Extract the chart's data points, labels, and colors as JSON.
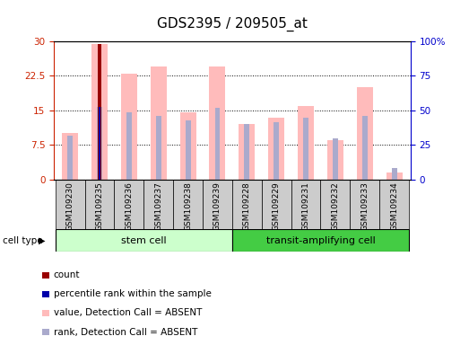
{
  "title": "GDS2395 / 209505_at",
  "samples": [
    "GSM109230",
    "GSM109235",
    "GSM109236",
    "GSM109237",
    "GSM109238",
    "GSM109239",
    "GSM109228",
    "GSM109229",
    "GSM109231",
    "GSM109232",
    "GSM109233",
    "GSM109234"
  ],
  "value_bars": [
    10.0,
    29.5,
    23.0,
    24.5,
    14.5,
    24.5,
    12.0,
    13.5,
    16.0,
    8.5,
    20.0,
    1.5
  ],
  "rank_bars": [
    9.5,
    15.8,
    14.5,
    13.8,
    12.8,
    15.5,
    12.0,
    12.5,
    13.5,
    9.0,
    13.8,
    2.5
  ],
  "count_vals": [
    0,
    29.5,
    0,
    0,
    0,
    0,
    0,
    0,
    0,
    0,
    0,
    0
  ],
  "percentile_vals": [
    0,
    15.8,
    0,
    0,
    0,
    0,
    0,
    0,
    0,
    0,
    0,
    0
  ],
  "ylim": [
    0,
    30
  ],
  "yticks": [
    0,
    7.5,
    15,
    22.5,
    30
  ],
  "ytick_labels": [
    "0",
    "7.5",
    "15",
    "22.5",
    "30"
  ],
  "y2lim": [
    0,
    100
  ],
  "y2ticks": [
    0,
    25,
    50,
    75,
    100
  ],
  "y2tick_labels": [
    "0",
    "25",
    "50",
    "75",
    "100%"
  ],
  "cell_types": [
    "stem cell",
    "transit-amplifying cell"
  ],
  "stem_indices": [
    0,
    5
  ],
  "transit_indices": [
    6,
    11
  ],
  "stem_cell_color_light": "#ccffcc",
  "stem_cell_color_dark": "#66dd66",
  "transit_cell_color_light": "#99ee99",
  "transit_cell_color_dark": "#44cc44",
  "sample_box_color": "#cccccc",
  "bar_color_value": "#ffbbbb",
  "bar_color_rank": "#aaaacc",
  "bar_color_count": "#990000",
  "bar_color_percentile": "#0000aa",
  "left_axis_color": "#cc2200",
  "right_axis_color": "#0000cc",
  "grid_color": "#000000",
  "title_fontsize": 11,
  "tick_fontsize": 7.5,
  "sample_fontsize": 6.5,
  "legend_fontsize": 7.5
}
